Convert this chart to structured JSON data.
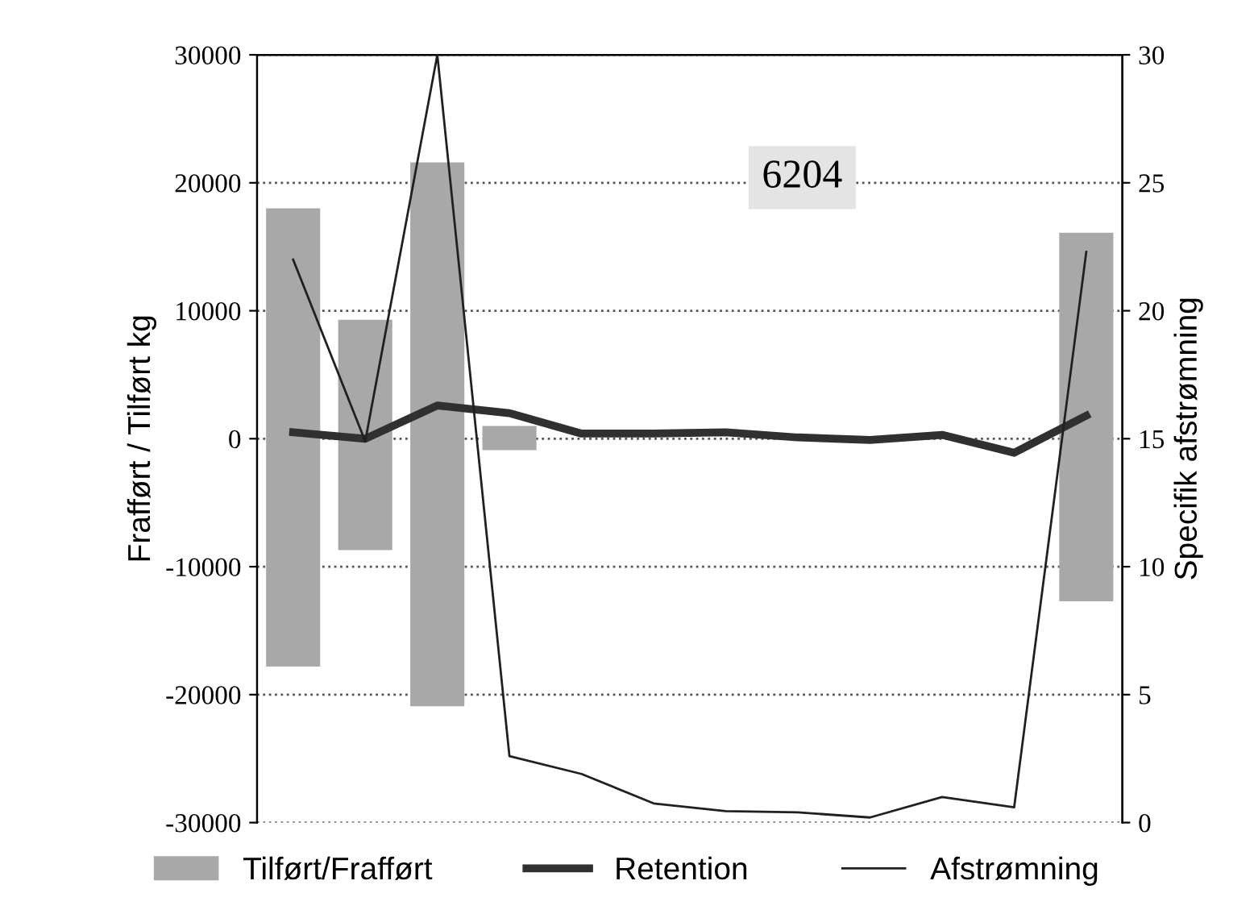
{
  "chart_data": {
    "type": "bar",
    "categories": [
      null,
      null,
      null,
      null,
      null,
      null,
      null,
      null,
      null,
      null,
      null,
      null
    ],
    "ylabel": "Frafført / Tilført kg",
    "y2label": "Specifik afstrømning",
    "series": [
      {
        "name": "Tilført/Frafført",
        "color": "#a8a8a8",
        "values": [
          35800,
          18000,
          42500,
          1900,
          null,
          null,
          null,
          null,
          null,
          null,
          null,
          28800
        ],
        "base": [
          -17800,
          -8700,
          -20900,
          -900,
          null,
          null,
          null,
          null,
          null,
          null,
          null,
          -12700
        ]
      },
      {
        "name": "Retention",
        "type": "line",
        "color": "#303030",
        "values": [
          500,
          0,
          2600,
          2000,
          400,
          400,
          500,
          100,
          -100,
          300,
          -1100,
          1800
        ]
      },
      {
        "name": "Afstrømning",
        "type": "line",
        "axis": "y2",
        "color": "#202020",
        "values": [
          22.0,
          14.9,
          30,
          2.6,
          1.9,
          0.75,
          0.45,
          0.4,
          0.2,
          1.0,
          0.6,
          22.3
        ]
      }
    ],
    "ylim": [
      -30000,
      30000
    ],
    "yticks": [
      -30000,
      -20000,
      -10000,
      0,
      10000,
      20000,
      30000
    ],
    "y2lim": [
      0,
      30
    ],
    "y2ticks": [
      0,
      5,
      10,
      15,
      20,
      25,
      30
    ],
    "annotations": [
      "6204"
    ],
    "grid": "y",
    "legend": "bottom",
    "tick_labels": "y"
  }
}
